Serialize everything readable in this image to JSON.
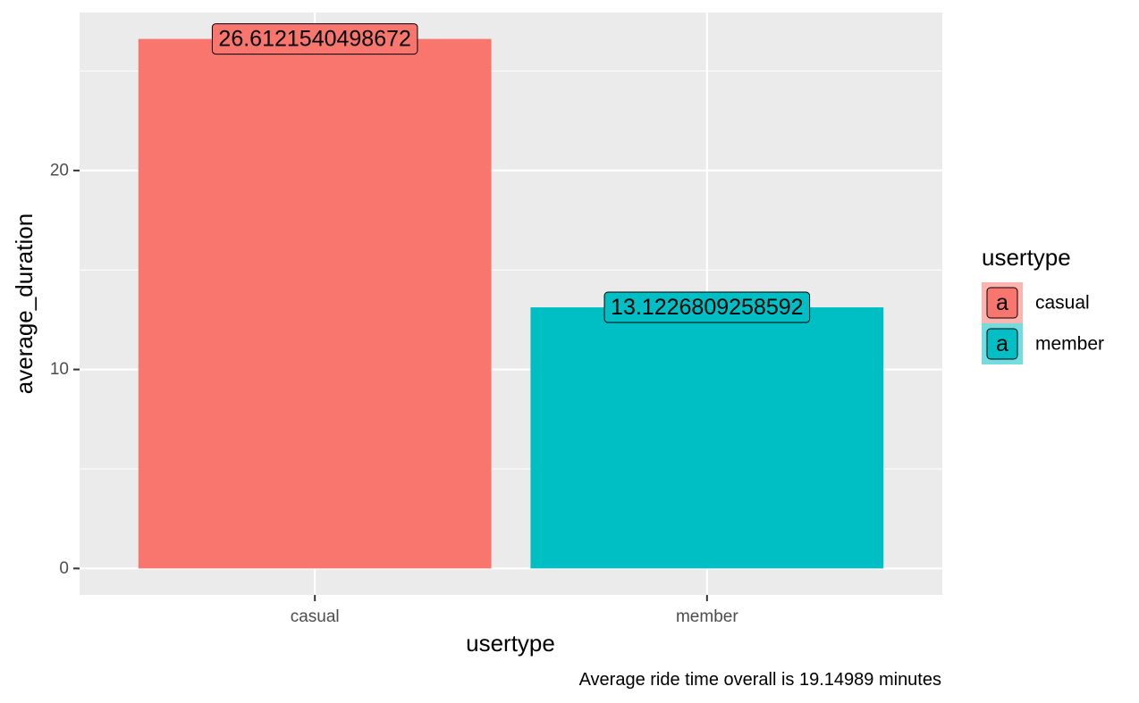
{
  "chart_data": {
    "type": "bar",
    "categories": [
      "casual",
      "member"
    ],
    "values": [
      26.6121540498672,
      13.1226809258592
    ],
    "value_labels": [
      "26.6121540498672",
      "13.1226809258592"
    ],
    "colors": [
      "#F8766D",
      "#00BFC4"
    ],
    "xlabel": "usertype",
    "ylabel": "average_duration",
    "ylim": [
      -1.33,
      27.94
    ],
    "y_ticks": [
      0,
      10,
      20
    ],
    "y_tick_labels": [
      "0",
      "10",
      "20"
    ],
    "grid": true,
    "panel_background": "#EBEBEB",
    "legend": {
      "title": "usertype",
      "position": "right",
      "key_glyph": "a",
      "entries": [
        "casual",
        "member"
      ]
    },
    "caption": "Average ride time overall is 19.14989 minutes"
  }
}
